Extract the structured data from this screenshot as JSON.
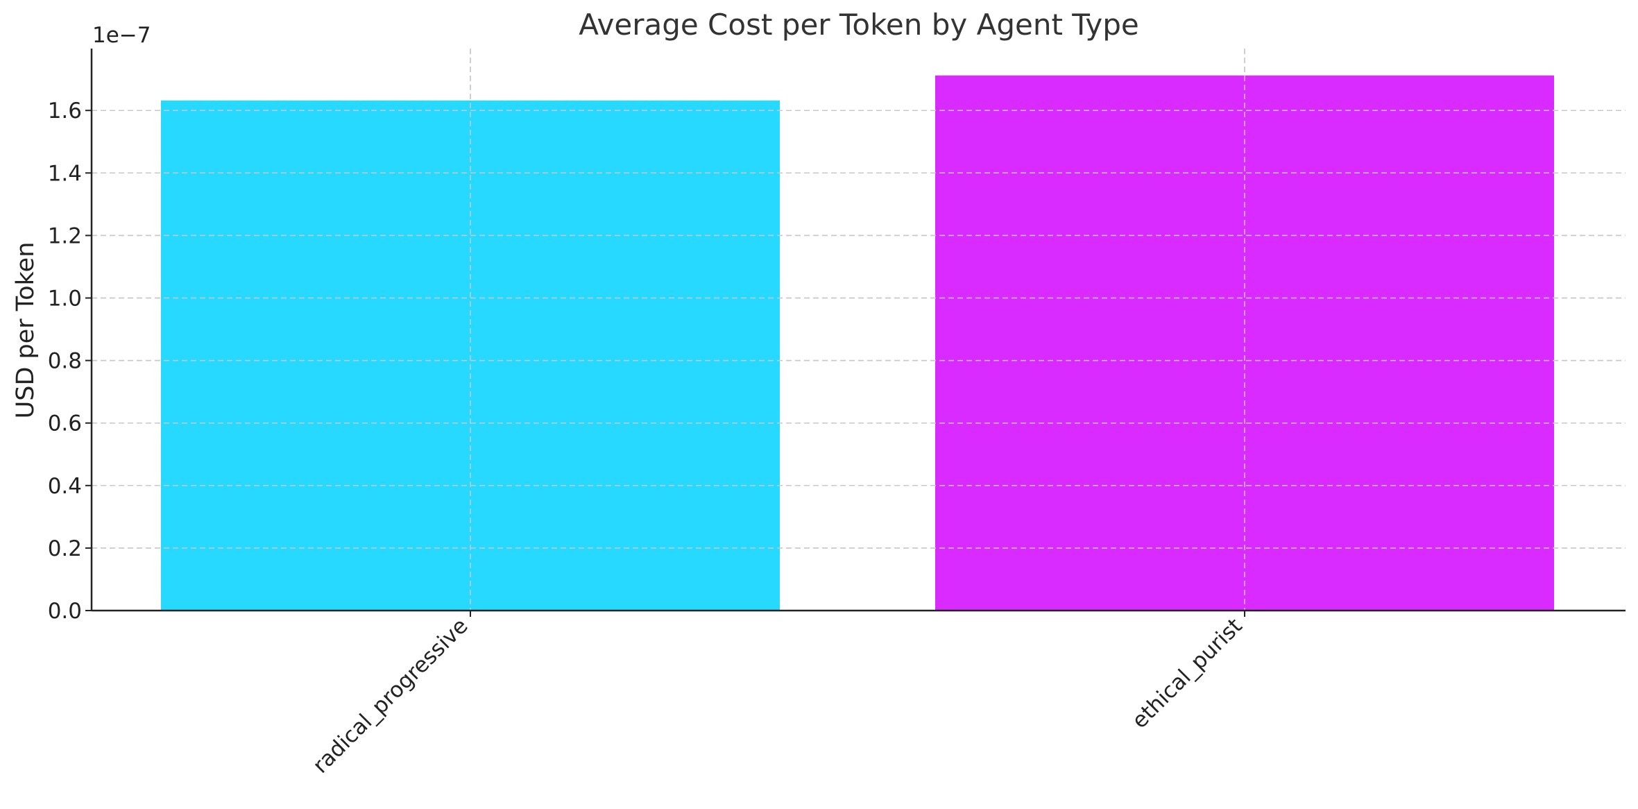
{
  "chart_data": {
    "type": "bar",
    "title": "Average Cost per Token by Agent Type",
    "xlabel": "",
    "ylabel": "USD per Token",
    "y_offset_text": "1e−7",
    "categories": [
      "radical_progressive",
      "ethical_purist"
    ],
    "values": [
      1.632e-07,
      1.712e-07
    ],
    "colors": [
      "#27d8ff",
      "#d92aff"
    ],
    "ylim": [
      0,
      1.8e-07
    ],
    "y_ticks": [
      0.0,
      0.2,
      0.4,
      0.6,
      0.8,
      1.0,
      1.2,
      1.4,
      1.6
    ],
    "y_tick_labels": [
      "0.0",
      "0.2",
      "0.4",
      "0.6",
      "0.8",
      "1.0",
      "1.2",
      "1.4",
      "1.6"
    ],
    "y_tick_scale": 1e-07,
    "grid": true,
    "legend": "none"
  }
}
